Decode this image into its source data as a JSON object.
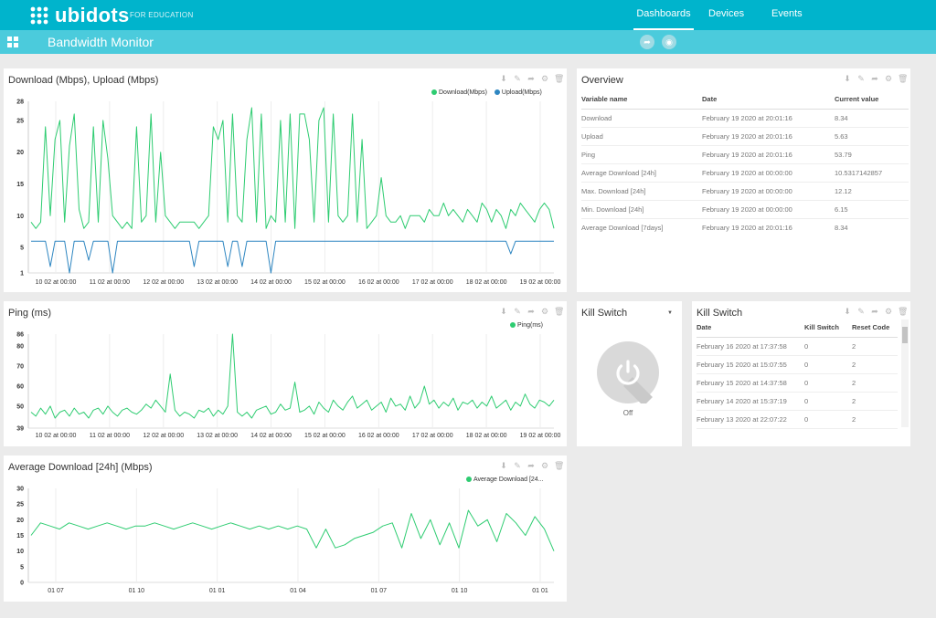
{
  "header": {
    "logo_text": "ubidots",
    "logo_sub": "FOR EDUCATION",
    "nav": [
      "Dashboards",
      "Devices",
      "Events"
    ],
    "nav_active": "Dashboards",
    "dashboard_title": "Bandwidth Monitor"
  },
  "widgets": {
    "bandwidth": {
      "title": "Download (Mbps), Upload (Mbps)",
      "legend": [
        {
          "name": "Download(Mbps)",
          "color": "#2ecc71"
        },
        {
          "name": "Upload(Mbps)",
          "color": "#2e86c1"
        }
      ]
    },
    "ping": {
      "title": "Ping (ms)",
      "legend": [
        {
          "name": "Ping(ms)",
          "color": "#2ecc71"
        }
      ]
    },
    "avgdl": {
      "title": "Average Download [24h] (Mbps)",
      "legend": [
        {
          "name": "Average Download [24...",
          "color": "#2ecc71"
        }
      ]
    },
    "overview": {
      "title": "Overview",
      "headers": [
        "Variable name",
        "Date",
        "Current value"
      ],
      "rows": [
        [
          "Download",
          "February 19 2020 at 20:01:16",
          "8.34"
        ],
        [
          "Upload",
          "February 19 2020 at 20:01:16",
          "5.63"
        ],
        [
          "Ping",
          "February 19 2020 at 20:01:16",
          "53.79"
        ],
        [
          "Average Download [24h]",
          "February 19 2020 at 00:00:00",
          "10.5317142857"
        ],
        [
          "Max. Download [24h]",
          "February 19 2020 at 00:00:00",
          "12.12"
        ],
        [
          "Min. Download [24h]",
          "February 19 2020 at 00:00:00",
          "6.15"
        ],
        [
          "Average Download [7days]",
          "February 19 2020 at 20:01:16",
          "8.34"
        ]
      ]
    },
    "killswitch": {
      "title": "Kill Switch",
      "state_label": "Off",
      "is_on": false
    },
    "killtable": {
      "title": "Kill Switch",
      "headers": [
        "Date",
        "Kill Switch",
        "Reset Code"
      ],
      "rows": [
        [
          "February 16 2020 at 17:37:58",
          "0",
          "2"
        ],
        [
          "February 15 2020 at 15:07:55",
          "0",
          "2"
        ],
        [
          "February 15 2020 at 14:37:58",
          "0",
          "2"
        ],
        [
          "February 14 2020 at 15:37:19",
          "0",
          "2"
        ],
        [
          "February 13 2020 at 22:07:22",
          "0",
          "2"
        ]
      ]
    }
  },
  "icons": {
    "tools": [
      "download-icon",
      "edit-icon",
      "share-icon",
      "settings-icon",
      "trash-icon"
    ],
    "header": [
      "grid-icon",
      "share-icon",
      "lock-icon"
    ]
  },
  "chart_data": [
    {
      "type": "line",
      "title": "Download (Mbps), Upload (Mbps)",
      "x_ticks": [
        "10 02 at 00:00",
        "11 02 at 00:00",
        "12 02 at 00:00",
        "13 02 at 00:00",
        "14 02 at 00:00",
        "15 02 at 00:00",
        "16 02 at 00:00",
        "17 02 at 00:00",
        "18 02 at 00:00",
        "19 02 at 00:00"
      ],
      "y_ticks": [
        1,
        5,
        10,
        15,
        20,
        25,
        28
      ],
      "ylim": [
        1,
        28
      ],
      "series": [
        {
          "name": "Download(Mbps)",
          "color": "#2ecc71",
          "values": [
            9,
            8,
            9,
            24,
            10,
            22,
            25,
            9,
            21,
            26,
            11,
            8,
            9,
            24,
            9,
            25,
            19,
            10,
            9,
            8,
            9,
            8,
            24,
            9,
            10,
            26,
            9,
            20,
            10,
            9,
            8,
            9,
            9,
            9,
            9,
            8,
            9,
            10,
            24,
            22,
            25,
            9,
            26,
            10,
            9,
            22,
            27,
            9,
            26,
            8,
            10,
            9,
            25,
            9,
            26,
            8,
            26,
            26,
            22,
            9,
            25,
            27,
            9,
            26,
            10,
            9,
            10,
            26,
            9,
            22,
            8,
            9,
            10,
            16,
            10,
            9,
            9,
            10,
            8,
            10,
            10,
            10,
            9,
            11,
            10,
            10,
            12,
            10,
            11,
            10,
            9,
            11,
            10,
            9,
            12,
            11,
            9,
            11,
            10,
            8,
            11,
            10,
            12,
            11,
            10,
            9,
            11,
            12,
            11,
            8
          ]
        },
        {
          "name": "Upload(Mbps)",
          "color": "#2e86c1",
          "values": [
            6,
            6,
            6,
            6,
            2,
            6,
            6,
            6,
            1,
            6,
            6,
            6,
            3,
            6,
            6,
            6,
            6,
            1,
            6,
            6,
            6,
            6,
            6,
            6,
            6,
            6,
            6,
            6,
            6,
            6,
            6,
            6,
            6,
            6,
            2,
            6,
            6,
            6,
            6,
            6,
            6,
            2,
            6,
            6,
            2,
            6,
            6,
            6,
            6,
            6,
            1,
            6,
            6,
            6,
            6,
            6,
            6,
            6,
            6,
            6,
            6,
            6,
            6,
            6,
            6,
            6,
            6,
            6,
            6,
            6,
            6,
            6,
            6,
            6,
            6,
            6,
            6,
            6,
            6,
            6,
            6,
            6,
            6,
            6,
            6,
            6,
            6,
            6,
            6,
            6,
            6,
            6,
            6,
            6,
            6,
            6,
            6,
            6,
            6,
            6,
            4,
            6,
            6,
            6,
            6,
            6,
            6,
            6,
            6,
            6
          ]
        }
      ]
    },
    {
      "type": "line",
      "title": "Ping (ms)",
      "x_ticks": [
        "10 02 at 00:00",
        "11 02 at 00:00",
        "12 02 at 00:00",
        "13 02 at 00:00",
        "14 02 at 00:00",
        "15 02 at 00:00",
        "16 02 at 00:00",
        "17 02 at 00:00",
        "18 02 at 00:00",
        "19 02 at 00:00"
      ],
      "y_ticks": [
        39,
        50,
        60,
        70,
        80,
        86
      ],
      "ylim": [
        39,
        86
      ],
      "series": [
        {
          "name": "Ping(ms)",
          "color": "#2ecc71",
          "values": [
            47,
            45,
            49,
            46,
            50,
            44,
            47,
            48,
            45,
            49,
            46,
            47,
            44,
            48,
            49,
            46,
            50,
            47,
            45,
            48,
            49,
            47,
            46,
            48,
            51,
            49,
            53,
            50,
            47,
            66,
            48,
            45,
            47,
            46,
            44,
            48,
            47,
            49,
            45,
            48,
            46,
            50,
            86,
            47,
            45,
            47,
            44,
            48,
            49,
            50,
            46,
            47,
            51,
            48,
            49,
            62,
            47,
            48,
            50,
            46,
            52,
            49,
            47,
            53,
            50,
            48,
            52,
            55,
            49,
            51,
            53,
            48,
            50,
            52,
            47,
            54,
            50,
            51,
            48,
            55,
            49,
            52,
            60,
            51,
            53,
            49,
            52,
            50,
            54,
            48,
            52,
            51,
            53,
            49,
            52,
            50,
            55,
            49,
            51,
            53,
            48,
            52,
            50,
            56,
            51,
            49,
            53,
            52,
            50,
            53
          ]
        }
      ]
    },
    {
      "type": "line",
      "title": "Average Download [24h] (Mbps)",
      "x_ticks": [
        "01 07",
        "01 10",
        "01 01",
        "01 04",
        "01 07",
        "01 10",
        "01 01"
      ],
      "y_ticks": [
        0,
        5,
        10,
        15,
        20,
        25,
        30
      ],
      "ylim": [
        0,
        30
      ],
      "series": [
        {
          "name": "Average Download [24...",
          "color": "#2ecc71",
          "values": [
            15,
            19,
            18,
            17,
            19,
            18,
            17,
            18,
            19,
            18,
            17,
            18,
            18,
            19,
            18,
            17,
            18,
            19,
            18,
            17,
            18,
            19,
            18,
            17,
            18,
            17,
            18,
            17,
            18,
            17,
            11,
            17,
            11,
            12,
            14,
            15,
            16,
            18,
            19,
            11,
            22,
            14,
            20,
            12,
            19,
            11,
            23,
            18,
            20,
            13,
            22,
            19,
            15,
            21,
            17,
            10
          ]
        }
      ]
    }
  ]
}
